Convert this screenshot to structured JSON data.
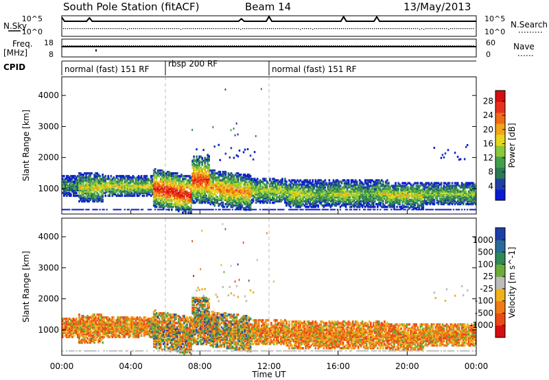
{
  "header": {
    "station": "South Pole Station (fitACF)",
    "beam": "Beam 14",
    "date": "13/May/2013"
  },
  "strip_labels": {
    "nsky": "N.Sky",
    "nsearch": "N.Search",
    "freq": "Freq.",
    "freq_unit": "[MHz]",
    "nave": "Nave",
    "cpid": "CPID",
    "nsky_top": "10^5",
    "nsky_bottom": "10^0",
    "nsearch_top": "10^5",
    "nsearch_bottom": "10^0",
    "freq_top": "18",
    "freq_bottom": "8",
    "nave_top": "60",
    "nave_bottom": "0"
  },
  "cpid_segments": [
    {
      "label": "normal (fast) 151 RF",
      "start_h": 0,
      "end_h": 6
    },
    {
      "label": "rbsp 200 RF",
      "start_h": 6,
      "end_h": 12
    },
    {
      "label": "normal (fast) 151 RF",
      "start_h": 12,
      "end_h": 24
    }
  ],
  "chart_data": [
    {
      "type": "heatmap",
      "variable": "power",
      "ylabel": "Slant Range [km]",
      "xlabel": "Time UT",
      "x_ticks": [
        "00:00",
        "04:00",
        "08:00",
        "12:00",
        "16:00",
        "20:00",
        "00:00"
      ],
      "x_range_hours": [
        0,
        24
      ],
      "y_ticks": [
        "1000",
        "2000",
        "3000",
        "4000"
      ],
      "y_range_km": [
        180,
        4600
      ],
      "colorbar": {
        "label": "Power [dB]",
        "ticks": [
          "4",
          "8",
          "12",
          "16",
          "20",
          "24",
          "28"
        ],
        "range": [
          0,
          31
        ],
        "colors": [
          "#0a1bd4",
          "#1f3fa8",
          "#2c7a55",
          "#43a04a",
          "#8bc93a",
          "#e7d51b",
          "#f2a51a",
          "#f06b17",
          "#e8301a",
          "#d40f0f"
        ]
      }
    },
    {
      "type": "heatmap",
      "variable": "velocity",
      "ylabel": "Slant Range [km]",
      "xlabel": "Time UT",
      "x_ticks": [
        "00:00",
        "04:00",
        "08:00",
        "12:00",
        "16:00",
        "20:00",
        "00:00"
      ],
      "x_range_hours": [
        0,
        24
      ],
      "y_ticks": [
        "1000",
        "2000",
        "3000",
        "4000"
      ],
      "y_range_km": [
        180,
        4600
      ],
      "colorbar": {
        "label": "Velocity [m s^-1]",
        "ticks": [
          "1000",
          "500",
          "100",
          "25",
          "-25",
          "-100",
          "-500",
          "-1000"
        ],
        "colors": [
          "#1f3fa8",
          "#2a6a9a",
          "#2f8a55",
          "#6cab3a",
          "#bcbcbc",
          "#f2b01a",
          "#f07a16",
          "#ea4a16",
          "#d40f0f"
        ]
      }
    }
  ]
}
